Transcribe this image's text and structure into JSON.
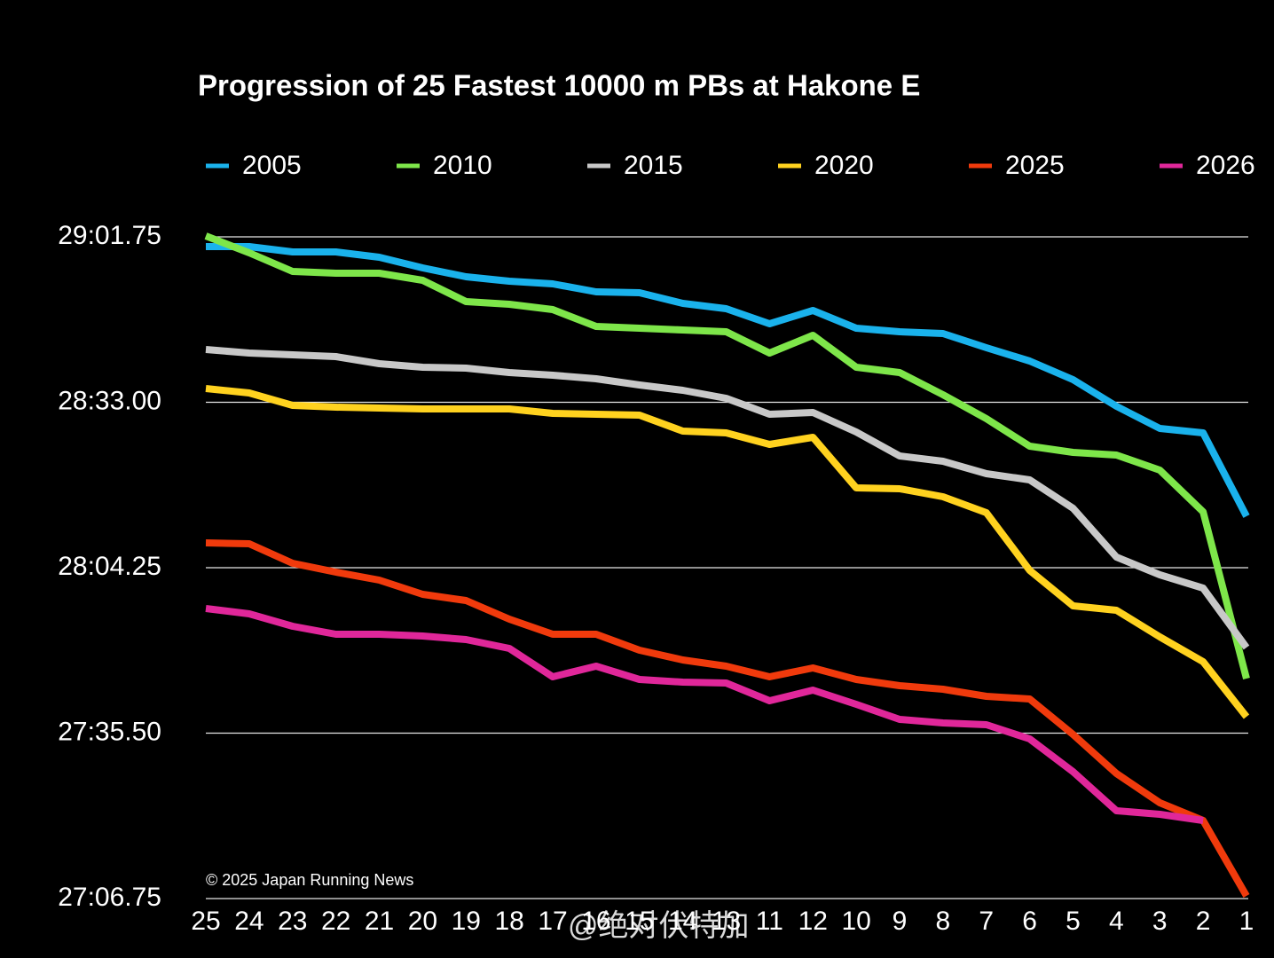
{
  "chart_data": {
    "type": "line",
    "title": "Progression of 25 Fastest 10000 m PBs at Hakone E",
    "annotations": [
      "© 2025 Japan Running News",
      "@绝对伏特加"
    ],
    "categories": [
      "25",
      "24",
      "23",
      "22",
      "21",
      "20",
      "19",
      "18",
      "17",
      "16",
      "15",
      "14",
      "13",
      "11",
      "12",
      "10",
      "9",
      "8",
      "7",
      "6",
      "5",
      "4",
      "3",
      "2",
      "1"
    ],
    "ylim": [
      1626.75,
      1741.75
    ],
    "yticks": [
      {
        "value": 1626.75,
        "label": "27:06.75"
      },
      {
        "value": 1655.5,
        "label": "27:35.50"
      },
      {
        "value": 1684.25,
        "label": "28:04.25"
      },
      {
        "value": 1713,
        "label": "28:33.00"
      },
      {
        "value": 1741.75,
        "label": "29:01.75"
      }
    ],
    "grid": true,
    "legend": "top",
    "series": [
      {
        "name": "2005",
        "color": "#1ab2ec",
        "values": [
          1740.05,
          1740.05,
          1739.13,
          1739.13,
          1738.2,
          1736.35,
          1734.81,
          1734.04,
          1733.58,
          1732.19,
          1732.04,
          1730.19,
          1729.26,
          1726.64,
          1728.96,
          1725.87,
          1725.26,
          1724.95,
          1722.48,
          1720.17,
          1716.93,
          1712.31,
          1708.45,
          1707.68,
          1693.19
        ]
      },
      {
        "name": "2010",
        "color": "#7ee64a",
        "values": [
          1741.9,
          1738.98,
          1735.74,
          1735.43,
          1735.43,
          1734.2,
          1730.5,
          1730.03,
          1729.11,
          1726.18,
          1725.87,
          1725.56,
          1725.26,
          1721.56,
          1724.64,
          1719.09,
          1718.16,
          1714.31,
          1710.15,
          1705.37,
          1704.29,
          1703.83,
          1701.21,
          1693.96,
          1664.98
        ]
      },
      {
        "name": "2015",
        "color": "#c8c8c8",
        "values": [
          1722.17,
          1721.56,
          1721.25,
          1720.94,
          1719.71,
          1719.09,
          1718.93,
          1718.16,
          1717.7,
          1717.09,
          1716.01,
          1715.08,
          1713.69,
          1710.92,
          1711.23,
          1707.84,
          1703.67,
          1702.75,
          1700.59,
          1699.51,
          1694.58,
          1686.1,
          1683.02,
          1680.7,
          1670.38
        ]
      },
      {
        "name": "2020",
        "color": "#ffd21f",
        "values": [
          1715.39,
          1714.62,
          1712.46,
          1712.15,
          1712.0,
          1711.84,
          1711.84,
          1711.84,
          1711.07,
          1710.92,
          1710.76,
          1707.99,
          1707.68,
          1705.68,
          1706.91,
          1698.12,
          1697.97,
          1696.58,
          1693.81,
          1683.79,
          1677.62,
          1676.85,
          1672.23,
          1667.91,
          1658.35
        ]
      },
      {
        "name": "2025",
        "color": "#f03a0c",
        "values": [
          1688.57,
          1688.41,
          1685.02,
          1683.48,
          1682.09,
          1679.63,
          1678.55,
          1675.31,
          1672.69,
          1672.69,
          1669.91,
          1668.22,
          1667.14,
          1665.29,
          1666.83,
          1664.83,
          1663.75,
          1663.13,
          1661.9,
          1661.44,
          1655.27,
          1648.49,
          1643.4,
          1640.32,
          1627.21
        ]
      },
      {
        "name": "2026",
        "color": "#e0279a",
        "values": [
          1677.16,
          1676.23,
          1674.08,
          1672.69,
          1672.69,
          1672.38,
          1671.76,
          1670.22,
          1665.29,
          1667.14,
          1664.83,
          1664.36,
          1664.21,
          1661.13,
          1662.98,
          1660.51,
          1657.89,
          1657.27,
          1656.96,
          1654.5,
          1648.79,
          1642.01,
          1641.4,
          1640.32,
          null
        ]
      }
    ]
  }
}
